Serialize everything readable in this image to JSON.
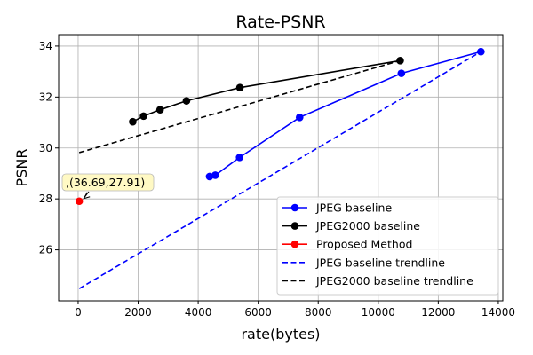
{
  "chart_data": {
    "type": "line",
    "title": "Rate-PSNR",
    "xlabel": "rate(bytes)",
    "ylabel": "PSNR",
    "xlim": [
      -650,
      14150
    ],
    "ylim": [
      24.0,
      34.45
    ],
    "xticks": [
      0,
      2000,
      4000,
      6000,
      8000,
      10000,
      12000,
      14000
    ],
    "yticks": [
      26,
      28,
      30,
      32,
      34
    ],
    "grid": true,
    "legend_position": "lower-right",
    "series": [
      {
        "name": "JPEG baseline",
        "style": "line-marker",
        "color": "#0000ff",
        "x": [
          4380,
          4570,
          5380,
          7380,
          10770,
          13420
        ],
        "y": [
          28.88,
          28.93,
          29.63,
          31.2,
          32.93,
          33.78
        ]
      },
      {
        "name": "JPEG2000 baseline",
        "style": "line-marker",
        "color": "#000000",
        "x": [
          1820,
          2180,
          2730,
          3610,
          5390,
          10730
        ],
        "y": [
          31.03,
          31.25,
          31.5,
          31.85,
          32.37,
          33.43
        ]
      },
      {
        "name": "Proposed Method",
        "style": "marker",
        "color": "#ff0000",
        "x": [
          36.69
        ],
        "y": [
          27.91
        ]
      },
      {
        "name": "JPEG baseline trendline",
        "style": "dashed",
        "color": "#0000ff",
        "x": [
          36.69,
          13420
        ],
        "y": [
          24.48,
          33.78
        ]
      },
      {
        "name": "JPEG2000 baseline trendline",
        "style": "dashed",
        "color": "#000000",
        "x": [
          36.69,
          10730
        ],
        "y": [
          29.82,
          33.43
        ]
      }
    ],
    "annotations": [
      {
        "text": ",(36.69,27.91)",
        "target_x": 36.69,
        "target_y": 27.91
      }
    ]
  }
}
